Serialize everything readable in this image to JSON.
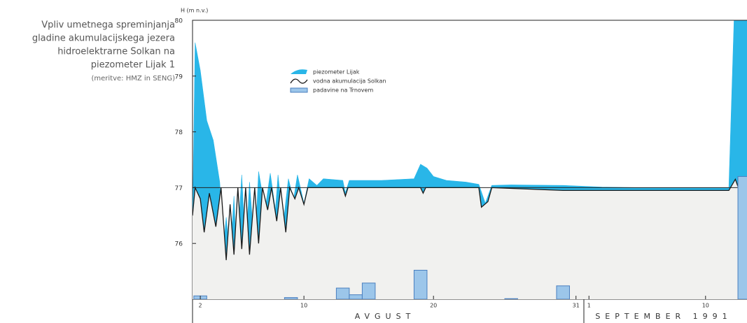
{
  "chart_data": {
    "type": "area",
    "title": [
      "Vpliv umetnega spreminjanja",
      "gladine akumulacijskega jezera",
      "hidroelektrarne Solkan na",
      "piezometer Lijak 1"
    ],
    "subtitle": "(meritve: HMZ in SENG)",
    "y_label": "H (m n.v.)",
    "x_group_labels": [
      "AVGUST",
      "SEPTEMBER 1991"
    ],
    "xlim": [
      1.4,
      44.2
    ],
    "xticks": [
      2,
      10,
      20,
      31,
      {
        "value": 32,
        "label": "1"
      },
      {
        "value": 41,
        "label": "10"
      }
    ],
    "ylim": [
      75,
      80
    ],
    "yticks": [
      76,
      77,
      78,
      79,
      80
    ],
    "hline": 77,
    "series": [
      {
        "name": "piezometer Lijak",
        "kind": "area",
        "color": "#29b6e8",
        "x": [
          1.4,
          1.6,
          2,
          2.5,
          3,
          3.5,
          3.8,
          4,
          4.3,
          4.6,
          4.8,
          5.2,
          5.5,
          5.8,
          6.2,
          6.5,
          7,
          7.4,
          7.8,
          8,
          8.4,
          8.8,
          9.2,
          9.5,
          10,
          10.4,
          11,
          11.5,
          13,
          13.2,
          13.5,
          16,
          18.5,
          19,
          19.5,
          20,
          21,
          22.5,
          23.5,
          24,
          24.5,
          26,
          30,
          33,
          36,
          42.8,
          43.2,
          44.3
        ],
        "values": [
          76.35,
          79.6,
          79.1,
          78.2,
          77.85,
          77.1,
          75.97,
          76.47,
          75.72,
          76.85,
          75.72,
          77.23,
          75.84,
          77.1,
          75.84,
          77.29,
          76.6,
          77.26,
          76.6,
          77.23,
          76.35,
          77.16,
          76.79,
          77.23,
          76.72,
          77.16,
          77.04,
          77.16,
          77.13,
          76.91,
          77.13,
          77.13,
          77.16,
          77.42,
          77.35,
          77.2,
          77.13,
          77.1,
          77.06,
          76.72,
          77.04,
          77.05,
          77.04,
          77.01,
          77.0,
          77.0,
          79.99,
          79.99
        ]
      },
      {
        "name": "vodna akumulacija Solkan",
        "kind": "line",
        "color": "#1a1a1a",
        "x": [
          1.4,
          1.6,
          2,
          2.3,
          2.7,
          3.2,
          3.6,
          4,
          4.3,
          4.6,
          4.9,
          5.2,
          5.5,
          5.8,
          6.2,
          6.5,
          6.8,
          7.2,
          7.5,
          7.9,
          8.2,
          8.6,
          8.9,
          9.3,
          9.6,
          10,
          10.3,
          13,
          13.2,
          13.4,
          19,
          19.2,
          19.4,
          23.5,
          23.7,
          24.2,
          24.5,
          30,
          42.8,
          43.3,
          44.3
        ],
        "values": [
          76.5,
          77.0,
          76.8,
          76.2,
          76.9,
          76.3,
          77.0,
          75.7,
          76.7,
          75.8,
          77.0,
          75.9,
          77.0,
          75.8,
          77.0,
          76.0,
          77.0,
          76.6,
          77.0,
          76.4,
          77.0,
          76.2,
          77.0,
          76.8,
          77.0,
          76.7,
          77.0,
          77.0,
          76.85,
          77.0,
          77.0,
          76.9,
          77.0,
          77.0,
          76.65,
          76.75,
          77.0,
          76.95,
          76.95,
          77.15,
          76.5
        ]
      },
      {
        "name": "padavine na Trnovem",
        "kind": "bar",
        "color": "#9cc6ea",
        "x": [
          2,
          9,
          13,
          14,
          15,
          19,
          26,
          30,
          44
        ],
        "values": [
          75.06,
          75.03,
          75.2,
          75.08,
          75.29,
          75.52,
          75.01,
          75.24,
          77.2
        ]
      }
    ]
  }
}
